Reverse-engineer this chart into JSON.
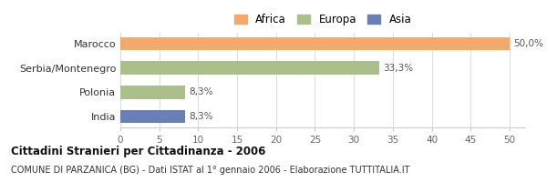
{
  "categories": [
    "Marocco",
    "Serbia/Montenegro",
    "Polonia",
    "India"
  ],
  "values": [
    50.0,
    33.3,
    8.3,
    8.3
  ],
  "colors": [
    "#F4A96A",
    "#AABF8A",
    "#AABF8A",
    "#6A7FB5"
  ],
  "labels": [
    "50,0%",
    "33,3%",
    "8,3%",
    "8,3%"
  ],
  "legend": [
    {
      "label": "Africa",
      "color": "#F4A96A"
    },
    {
      "label": "Europa",
      "color": "#AABF8A"
    },
    {
      "label": "Asia",
      "color": "#6A7FB5"
    }
  ],
  "xlim": [
    0,
    52
  ],
  "xticks": [
    0,
    5,
    10,
    15,
    20,
    25,
    30,
    35,
    40,
    45,
    50
  ],
  "title_bold": "Cittadini Stranieri per Cittadinanza - 2006",
  "subtitle": "COMUNE DI PARZANICA (BG) - Dati ISTAT al 1° gennaio 2006 - Elaborazione TUTTITALIA.IT",
  "background_color": "#ffffff",
  "grid_color": "#dddddd",
  "bar_height": 0.55,
  "label_fontsize": 7.5,
  "ytick_fontsize": 8,
  "xtick_fontsize": 7.5
}
